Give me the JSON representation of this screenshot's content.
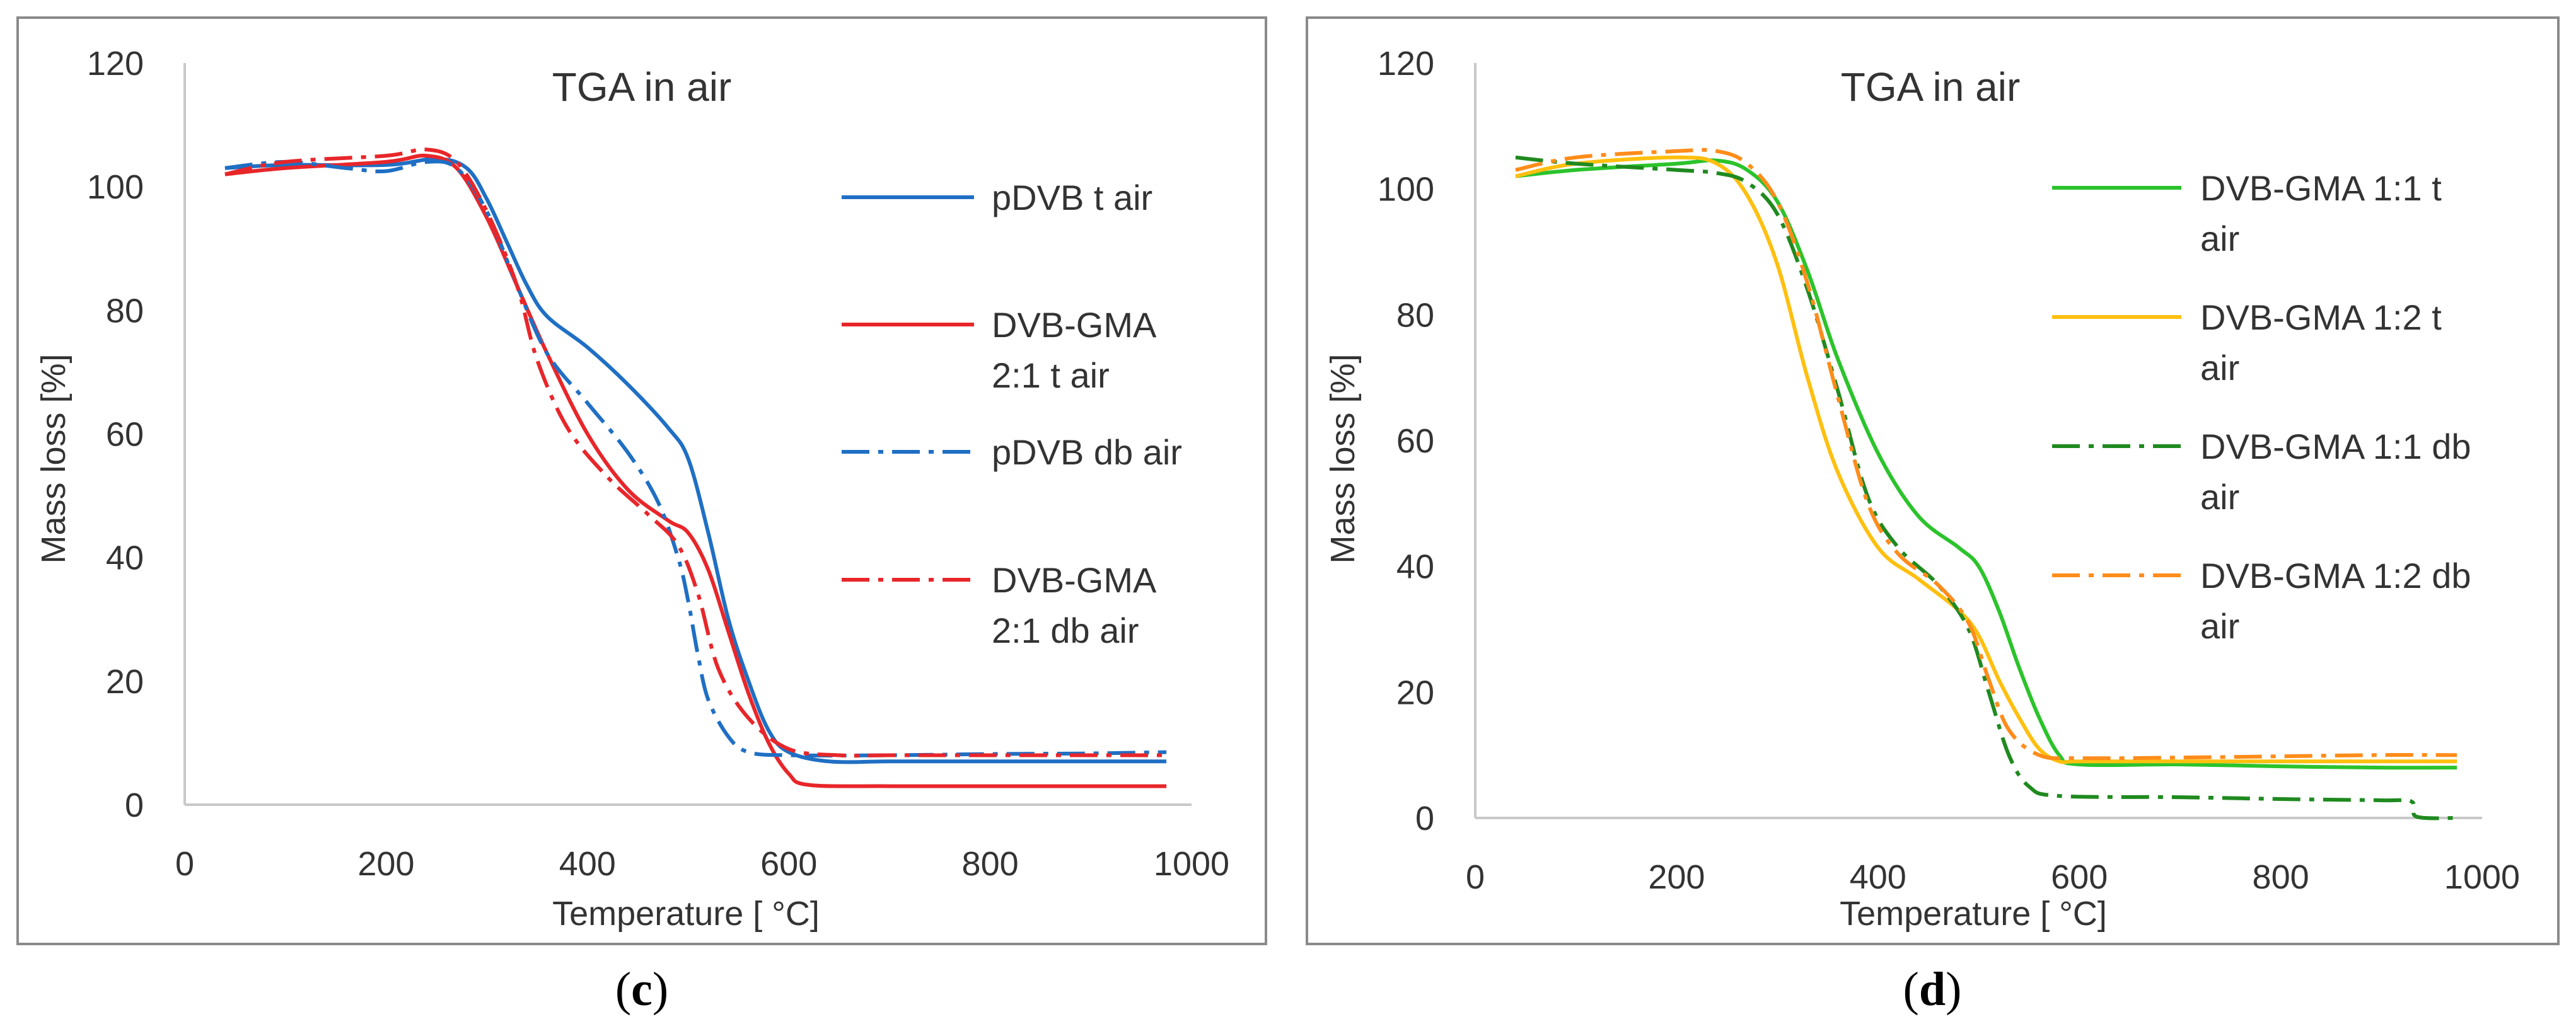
{
  "chart_data": [
    {
      "type": "line",
      "panel": "c",
      "title": "TGA in air",
      "xlabel": "Temperature [ °C]",
      "ylabel": "Mass loss [%]",
      "xlim": [
        0,
        1000
      ],
      "ylim": [
        0,
        120
      ],
      "xticks": [
        0,
        200,
        400,
        600,
        800,
        1000
      ],
      "yticks": [
        0,
        20,
        40,
        60,
        80,
        100,
        120
      ],
      "grid": false,
      "legend_position": "right",
      "series": [
        {
          "name": "pDVB t air",
          "legend_lines": [
            "pDVB t air"
          ],
          "color": "#1f6fc4",
          "style": "solid",
          "points": [
            [
              40,
              103
            ],
            [
              100,
              103.5
            ],
            [
              200,
              103.5
            ],
            [
              250,
              104.5
            ],
            [
              280,
              103
            ],
            [
              300,
              98
            ],
            [
              320,
              91
            ],
            [
              340,
              84
            ],
            [
              360,
              79
            ],
            [
              400,
              74
            ],
            [
              440,
              68
            ],
            [
              480,
              61
            ],
            [
              500,
              56
            ],
            [
              520,
              44
            ],
            [
              540,
              30
            ],
            [
              560,
              20
            ],
            [
              580,
              12
            ],
            [
              600,
              8.5
            ],
            [
              640,
              7
            ],
            [
              700,
              7
            ],
            [
              800,
              7
            ],
            [
              900,
              7
            ],
            [
              975,
              7
            ]
          ]
        },
        {
          "name": "DVB-GMA 2:1 t air",
          "legend_lines": [
            "DVB-GMA",
            "2:1 t air"
          ],
          "color": "#e8262a",
          "style": "solid",
          "points": [
            [
              40,
              102
            ],
            [
              100,
              103
            ],
            [
              200,
              104
            ],
            [
              240,
              105
            ],
            [
              270,
              103
            ],
            [
              300,
              95
            ],
            [
              330,
              84
            ],
            [
              360,
              73
            ],
            [
              400,
              60
            ],
            [
              440,
              51
            ],
            [
              480,
              46
            ],
            [
              500,
              44
            ],
            [
              520,
              38
            ],
            [
              540,
              28
            ],
            [
              560,
              18
            ],
            [
              580,
              10
            ],
            [
              600,
              5
            ],
            [
              620,
              3.2
            ],
            [
              700,
              3
            ],
            [
              800,
              3
            ],
            [
              900,
              3
            ],
            [
              975,
              3
            ]
          ]
        },
        {
          "name": "pDVB db air",
          "legend_lines": [
            "pDVB db air"
          ],
          "color": "#1f6fc4",
          "style": "dashdot",
          "points": [
            [
              40,
              103
            ],
            [
              100,
              104
            ],
            [
              160,
              103
            ],
            [
              200,
              102.5
            ],
            [
              240,
              104
            ],
            [
              270,
              103
            ],
            [
              300,
              96
            ],
            [
              330,
              84
            ],
            [
              360,
              73
            ],
            [
              400,
              65
            ],
            [
              440,
              57
            ],
            [
              470,
              49
            ],
            [
              490,
              40
            ],
            [
              500,
              33
            ],
            [
              510,
              24
            ],
            [
              520,
              17
            ],
            [
              540,
              11
            ],
            [
              560,
              8.5
            ],
            [
              600,
              8
            ],
            [
              700,
              8
            ],
            [
              800,
              8.2
            ],
            [
              900,
              8.3
            ],
            [
              975,
              8.5
            ]
          ]
        },
        {
          "name": "DVB-GMA 2:1 db air",
          "legend_lines": [
            "DVB-GMA",
            "2:1 db air"
          ],
          "color": "#e8262a",
          "style": "dashdot",
          "points": [
            [
              40,
              102
            ],
            [
              100,
              104
            ],
            [
              200,
              105
            ],
            [
              240,
              106
            ],
            [
              270,
              104
            ],
            [
              300,
              96
            ],
            [
              330,
              84
            ],
            [
              350,
              72
            ],
            [
              380,
              61
            ],
            [
              420,
              53
            ],
            [
              460,
              47
            ],
            [
              490,
              42
            ],
            [
              510,
              34
            ],
            [
              530,
              22
            ],
            [
              560,
              14
            ],
            [
              600,
              9
            ],
            [
              650,
              8
            ],
            [
              700,
              8
            ],
            [
              800,
              8
            ],
            [
              900,
              8
            ],
            [
              975,
              8
            ]
          ]
        }
      ]
    },
    {
      "type": "line",
      "panel": "d",
      "title": "TGA in air",
      "xlabel": "Temperature [ °C]",
      "ylabel": "Mass loss [%]",
      "xlim": [
        0,
        1000
      ],
      "ylim": [
        0,
        120
      ],
      "xticks": [
        0,
        200,
        400,
        600,
        800,
        1000
      ],
      "yticks": [
        0,
        20,
        40,
        60,
        80,
        100,
        120
      ],
      "grid": false,
      "legend_position": "right",
      "series": [
        {
          "name": "DVB-GMA 1:1 t air",
          "legend_lines": [
            "DVB-GMA 1:1 t",
            "air"
          ],
          "color": "#2bc32b",
          "style": "solid",
          "points": [
            [
              40,
              102
            ],
            [
              100,
              103
            ],
            [
              200,
              104
            ],
            [
              240,
              104.5
            ],
            [
              270,
              103
            ],
            [
              300,
              98
            ],
            [
              330,
              87
            ],
            [
              360,
              73
            ],
            [
              400,
              58
            ],
            [
              440,
              48
            ],
            [
              480,
              43
            ],
            [
              500,
              40
            ],
            [
              520,
              33
            ],
            [
              540,
              24
            ],
            [
              560,
              16
            ],
            [
              580,
              10
            ],
            [
              600,
              8.5
            ],
            [
              700,
              8.5
            ],
            [
              800,
              8.2
            ],
            [
              900,
              8
            ],
            [
              975,
              8
            ]
          ]
        },
        {
          "name": "DVB-GMA 1:2 t air",
          "legend_lines": [
            "DVB-GMA 1:2 t",
            "air"
          ],
          "color": "#ffbf0f",
          "style": "solid",
          "points": [
            [
              40,
              102
            ],
            [
              100,
              104
            ],
            [
              200,
              105
            ],
            [
              240,
              104
            ],
            [
              270,
              99
            ],
            [
              300,
              88
            ],
            [
              330,
              70
            ],
            [
              360,
              55
            ],
            [
              400,
              43
            ],
            [
              440,
              38
            ],
            [
              480,
              33
            ],
            [
              500,
              29
            ],
            [
              520,
              22
            ],
            [
              540,
              16
            ],
            [
              560,
              11
            ],
            [
              580,
              9
            ],
            [
              600,
              9
            ],
            [
              700,
              9
            ],
            [
              800,
              9
            ],
            [
              900,
              9
            ],
            [
              975,
              9
            ]
          ]
        },
        {
          "name": "DVB-GMA 1:1 db air",
          "legend_lines": [
            "DVB-GMA 1:1 db",
            "air"
          ],
          "color": "#1f8a1f",
          "style": "dashdot",
          "points": [
            [
              40,
              105
            ],
            [
              100,
              104
            ],
            [
              200,
              103
            ],
            [
              240,
              102.5
            ],
            [
              270,
              101
            ],
            [
              300,
              96
            ],
            [
              330,
              84
            ],
            [
              360,
              68
            ],
            [
              390,
              51
            ],
            [
              420,
              43
            ],
            [
              460,
              37
            ],
            [
              490,
              30
            ],
            [
              510,
              20
            ],
            [
              530,
              10
            ],
            [
              550,
              5
            ],
            [
              580,
              3.5
            ],
            [
              700,
              3.3
            ],
            [
              800,
              3
            ],
            [
              900,
              2.8
            ],
            [
              930,
              2.6
            ],
            [
              935,
              0.2
            ],
            [
              975,
              0
            ]
          ]
        },
        {
          "name": "DVB-GMA 1:2 db air",
          "legend_lines": [
            "DVB-GMA 1:2 db",
            "air"
          ],
          "color": "#ff8c1a",
          "style": "dashdot",
          "points": [
            [
              40,
              103
            ],
            [
              100,
              105
            ],
            [
              200,
              106
            ],
            [
              240,
              106
            ],
            [
              270,
              104
            ],
            [
              300,
              98
            ],
            [
              330,
              85
            ],
            [
              360,
              67
            ],
            [
              390,
              50
            ],
            [
              420,
              42
            ],
            [
              460,
              37
            ],
            [
              490,
              31
            ],
            [
              510,
              22
            ],
            [
              530,
              14
            ],
            [
              560,
              10
            ],
            [
              600,
              9.5
            ],
            [
              700,
              9.6
            ],
            [
              800,
              9.8
            ],
            [
              900,
              10
            ],
            [
              975,
              10
            ]
          ]
        }
      ]
    }
  ],
  "captions": [
    {
      "open": "(",
      "letter": "c",
      "close": ")"
    },
    {
      "open": "(",
      "letter": "d",
      "close": ")"
    }
  ]
}
